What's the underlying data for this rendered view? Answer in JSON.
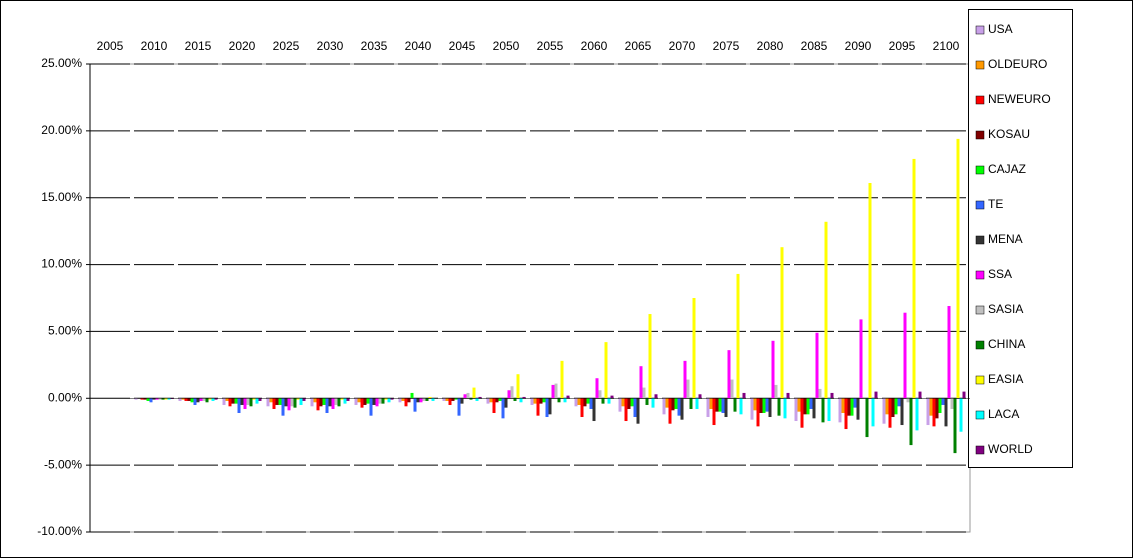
{
  "chart_data": {
    "type": "bar",
    "categories": [
      "2005",
      "2010",
      "2015",
      "2020",
      "2025",
      "2030",
      "2035",
      "2040",
      "2045",
      "2050",
      "2055",
      "2060",
      "2065",
      "2070",
      "2075",
      "2080",
      "2085",
      "2090",
      "2095",
      "2100"
    ],
    "series": [
      {
        "name": "USA",
        "color": "#c8a0e8",
        "values": [
          0,
          -0.1,
          -0.2,
          -0.5,
          -0.6,
          -0.6,
          -0.5,
          -0.3,
          -0.2,
          -0.4,
          -0.5,
          -0.6,
          -1.0,
          -1.2,
          -1.4,
          -1.6,
          -1.7,
          -1.8,
          -1.9,
          -2.0
        ]
      },
      {
        "name": "OLDEURO",
        "color": "#ff9900",
        "values": [
          0,
          0,
          -0.1,
          -0.2,
          -0.3,
          -0.3,
          -0.3,
          -0.2,
          -0.2,
          -0.3,
          -0.4,
          -0.5,
          -0.6,
          -0.7,
          -0.8,
          -0.9,
          -1.0,
          -1.1,
          -1.2,
          -1.3
        ]
      },
      {
        "name": "NEWEURO",
        "color": "#ff0000",
        "values": [
          0,
          -0.1,
          -0.2,
          -0.6,
          -0.8,
          -0.9,
          -0.7,
          -0.6,
          -0.5,
          -1.1,
          -1.3,
          -1.4,
          -1.7,
          -1.9,
          -2.0,
          -2.1,
          -2.2,
          -2.3,
          -2.2,
          -2.1
        ]
      },
      {
        "name": "KOSAU",
        "color": "#800000",
        "values": [
          0,
          -0.1,
          -0.2,
          -0.4,
          -0.5,
          -0.6,
          -0.5,
          -0.3,
          -0.2,
          -0.3,
          -0.4,
          -0.6,
          -0.8,
          -0.9,
          -1.0,
          -1.1,
          -1.2,
          -1.3,
          -1.4,
          -1.5
        ]
      },
      {
        "name": "CAJAZ",
        "color": "#00ff00",
        "values": [
          0,
          -0.2,
          -0.3,
          -0.4,
          -0.5,
          -0.5,
          -0.4,
          0.4,
          -0.1,
          -0.2,
          -0.3,
          -0.4,
          -0.6,
          -0.8,
          -1.0,
          -1.1,
          -1.2,
          -1.3,
          -1.2,
          -1.1
        ]
      },
      {
        "name": "TE",
        "color": "#3366ff",
        "values": [
          0,
          -0.3,
          -0.5,
          -1.1,
          -1.3,
          -1.1,
          -1.3,
          -1.0,
          -1.3,
          -1.5,
          -1.4,
          -0.8,
          -1.4,
          -1.3,
          -1.1,
          -1.0,
          -0.8,
          -0.7,
          -0.6,
          -0.5
        ]
      },
      {
        "name": "MENA",
        "color": "#333333",
        "values": [
          0,
          -0.1,
          -0.3,
          -0.5,
          -0.6,
          -0.6,
          -0.5,
          -0.3,
          -0.4,
          -0.7,
          -1.2,
          -1.7,
          -1.9,
          -1.6,
          -1.4,
          -1.4,
          -1.5,
          -1.6,
          -2.0,
          -2.1
        ]
      },
      {
        "name": "SSA",
        "color": "#ff00ff",
        "values": [
          0,
          -0.1,
          -0.2,
          -0.8,
          -0.9,
          -0.8,
          -0.6,
          -0.3,
          0.3,
          0.6,
          1.0,
          1.5,
          2.4,
          2.8,
          3.6,
          4.3,
          4.9,
          5.9,
          6.4,
          6.9
        ]
      },
      {
        "name": "SASIA",
        "color": "#c0c0c0",
        "values": [
          0,
          -0.1,
          -0.2,
          -0.5,
          -0.6,
          -0.5,
          -0.4,
          -0.2,
          0.4,
          0.9,
          1.1,
          0.6,
          0.8,
          1.4,
          1.4,
          1.0,
          0.7,
          0.1,
          -0.3,
          -0.8
        ]
      },
      {
        "name": "CHINA",
        "color": "#008000",
        "values": [
          0,
          -0.1,
          -0.3,
          -0.6,
          -0.7,
          -0.6,
          -0.4,
          -0.2,
          -0.1,
          -0.2,
          -0.3,
          -0.4,
          -0.5,
          -0.8,
          -1.0,
          -1.3,
          -1.8,
          -2.9,
          -3.5,
          -4.1
        ]
      },
      {
        "name": "EASIA",
        "color": "#ffff00",
        "values": [
          0,
          -0.1,
          -0.1,
          -0.1,
          -0.1,
          -0.1,
          -0.1,
          0.1,
          0.8,
          1.8,
          2.8,
          4.2,
          6.3,
          7.5,
          9.3,
          11.3,
          13.2,
          16.1,
          17.9,
          19.4
        ]
      },
      {
        "name": "LACA",
        "color": "#00ffff",
        "values": [
          0,
          -0.1,
          -0.2,
          -0.4,
          -0.5,
          -0.4,
          -0.3,
          -0.2,
          -0.2,
          -0.3,
          -0.3,
          -0.4,
          -0.7,
          -0.8,
          -1.2,
          -1.5,
          -1.7,
          -2.1,
          -2.4,
          -2.5
        ]
      },
      {
        "name": "WORLD",
        "color": "#800080",
        "values": [
          0,
          -0.05,
          -0.1,
          -0.2,
          -0.2,
          -0.2,
          -0.1,
          0,
          0.1,
          0.1,
          0.2,
          0.2,
          0.3,
          0.3,
          0.4,
          0.4,
          0.4,
          0.5,
          0.5,
          0.5
        ]
      }
    ],
    "ylim": [
      -10,
      25
    ],
    "yticks": [
      {
        "value": -10,
        "label": "-10.00%"
      },
      {
        "value": -5,
        "label": "-5.00%"
      },
      {
        "value": 0,
        "label": "0.00%"
      },
      {
        "value": 5,
        "label": "5.00%"
      },
      {
        "value": 10,
        "label": "10.00%"
      },
      {
        "value": 15,
        "label": "15.00%"
      },
      {
        "value": 20,
        "label": "20.00%"
      },
      {
        "value": 25,
        "label": "25.00%"
      }
    ],
    "grid": true,
    "legend": "right"
  }
}
